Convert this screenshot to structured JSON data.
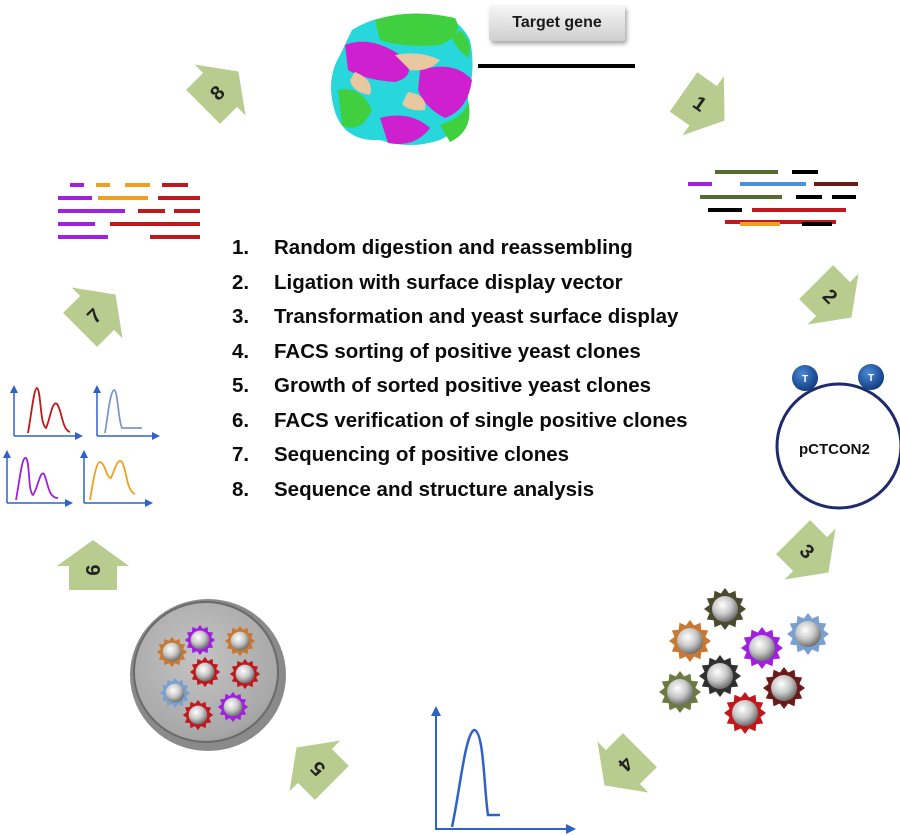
{
  "target_gene_label": "Target gene",
  "plasmid_label": "pCTCON2",
  "plasmid_tag": "T",
  "steps": [
    {
      "num": "1.",
      "text": "Random digestion and reassembling"
    },
    {
      "num": "2.",
      "text": "Ligation with surface display vector"
    },
    {
      "num": "3.",
      "text": "Transformation and yeast surface display"
    },
    {
      "num": "4.",
      "text": "FACS sorting of positive yeast clones"
    },
    {
      "num": "5.",
      "text": "Growth of sorted positive yeast clones"
    },
    {
      "num": "6.",
      "text": "FACS verification of single positive clones"
    },
    {
      "num": "7.",
      "text": "Sequencing of positive clones"
    },
    {
      "num": "8.",
      "text": "Sequence and structure analysis"
    }
  ],
  "cycle_arrows": [
    "1",
    "2",
    "3",
    "4",
    "5",
    "6",
    "7",
    "8"
  ],
  "colors": {
    "arrow_fill": "#b7cc8e",
    "arrow_text": "#222222",
    "plasmid_ring": "#1f2a6b",
    "plasmid_tag": "#1e4f9c",
    "protein_green": "#3fcf3f",
    "protein_magenta": "#cf20cf",
    "protein_cyan": "#27d7dc",
    "protein_tan": "#e8c8a0",
    "fragment_red": "#c0181c",
    "fragment_purple": "#a020e0",
    "fragment_orange": "#f0a020",
    "fragment_blue": "#4a90e0",
    "fragment_olive": "#556b2f",
    "fragment_brown": "#6b1a1a",
    "axis_blue": "#2f62c8"
  }
}
